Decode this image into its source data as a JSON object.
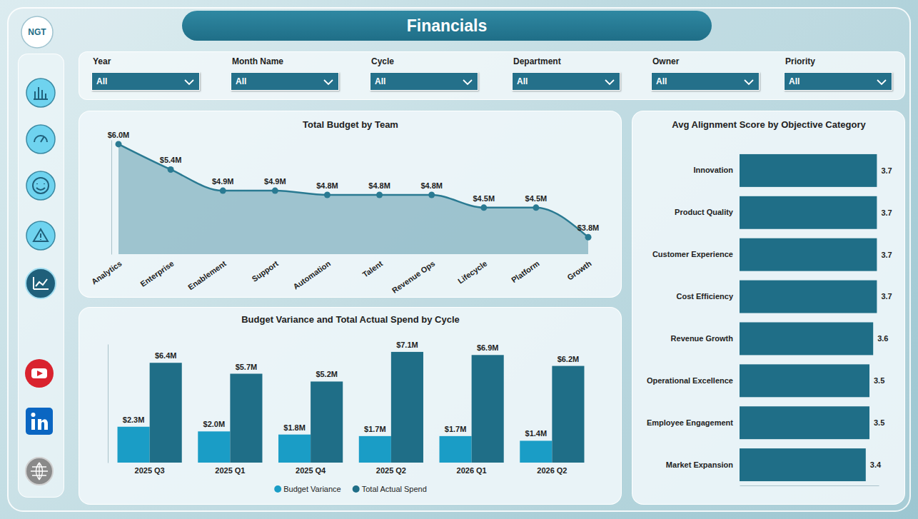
{
  "header": {
    "title": "Financials",
    "logo": "NGT"
  },
  "filters": [
    {
      "label": "Year",
      "value": "All"
    },
    {
      "label": "Month Name",
      "value": "All"
    },
    {
      "label": "Cycle",
      "value": "All"
    },
    {
      "label": "Department",
      "value": "All"
    },
    {
      "label": "Owner",
      "value": "All"
    },
    {
      "label": "Priority",
      "value": "All"
    }
  ],
  "chart_data": [
    {
      "type": "area",
      "title": "Total Budget by Team",
      "categories": [
        "Analytics",
        "Enterprise",
        "Enablement",
        "Support",
        "Automation",
        "Talent",
        "Revenue Ops",
        "Lifecycle",
        "Platform",
        "Growth"
      ],
      "values": [
        6.0,
        5.4,
        4.9,
        4.9,
        4.8,
        4.8,
        4.8,
        4.5,
        4.5,
        3.8
      ],
      "value_labels": [
        "$6.0M",
        "$5.4M",
        "$4.9M",
        "$4.9M",
        "$4.8M",
        "$4.8M",
        "$4.8M",
        "$4.5M",
        "$4.5M",
        "$3.8M"
      ],
      "color": "#2a7a92",
      "ylim": [
        3.4,
        6.1
      ],
      "data_labels": true,
      "tick_labels": "x",
      "marker": "circle"
    },
    {
      "type": "bar",
      "title": "Budget Variance and Total Actual Spend by Cycle",
      "categories": [
        "2025 Q3",
        "2025 Q1",
        "2025 Q4",
        "2025 Q2",
        "2026 Q1",
        "2026 Q2"
      ],
      "series": [
        {
          "name": "Budget Variance",
          "color": "#1a9dc6",
          "values": [
            2.3,
            2.0,
            1.8,
            1.7,
            1.7,
            1.4
          ],
          "value_labels": [
            "$2.3M",
            "$2.0M",
            "$1.8M",
            "$1.7M",
            "$1.7M",
            "$1.4M"
          ]
        },
        {
          "name": "Total Actual Spend",
          "color": "#1f6e87",
          "values": [
            6.4,
            5.7,
            5.2,
            7.1,
            6.9,
            6.2
          ],
          "value_labels": [
            "$6.4M",
            "$5.7M",
            "$5.2M",
            "$7.1M",
            "$6.9M",
            "$6.2M"
          ]
        }
      ],
      "ylim": [
        0,
        7.6
      ],
      "data_labels": true,
      "tick_labels": "x",
      "legend": "bottom"
    },
    {
      "type": "bar",
      "orientation": "horizontal",
      "title": "Avg Alignment Score by Objective Category",
      "categories": [
        "Innovation",
        "Product Quality",
        "Customer Experience",
        "Cost Efficiency",
        "Revenue Growth",
        "Operational Excellence",
        "Employee Engagement",
        "Market Expansion"
      ],
      "values": [
        3.7,
        3.7,
        3.7,
        3.7,
        3.6,
        3.5,
        3.5,
        3.4
      ],
      "color": "#1f6e87",
      "xlim": [
        0,
        3.75
      ],
      "data_labels": true,
      "tick_labels": "y"
    }
  ]
}
